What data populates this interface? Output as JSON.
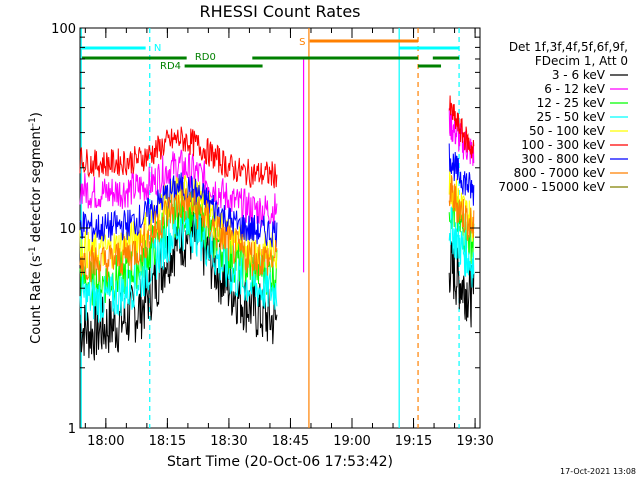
{
  "chart_data": {
    "type": "line",
    "title": "RHESSI Count Rates",
    "xlabel": "Start Time (20-Oct-06 17:53:42)",
    "ylabel_parts": [
      "Count Rate (s",
      "-1",
      " detector segment",
      "-1",
      ")"
    ],
    "yscale": "log",
    "ylim": [
      1,
      100
    ],
    "y_tick_labels": [
      "1",
      "10",
      "100"
    ],
    "xlim_minutes_after_17_53_42": [
      0,
      97.5
    ],
    "x_tick_labels": [
      "18:00",
      "18:15",
      "18:30",
      "18:45",
      "19:00",
      "19:15",
      "19:30"
    ],
    "legend_header": [
      "Det 1f,3f,4f,5f,6f,9f,",
      "FDecim 1, Att 0"
    ],
    "series": [
      {
        "name": "3 - 6 keV",
        "color": "#000000",
        "values": [
          3.2,
          3.0,
          3.2,
          3.3,
          3.6,
          4.0,
          5.2,
          7.2,
          8.8,
          9.2,
          8.0,
          6.4,
          5.2,
          4.5,
          4.0,
          3.6,
          3.4,
          null,
          null,
          null,
          null,
          null,
          null,
          null,
          null,
          null,
          null,
          null,
          null,
          null,
          6.5,
          5.6,
          5.0,
          4.4
        ]
      },
      {
        "name": "6 - 12 keV",
        "color": "#ff00ff",
        "values": [
          16.0,
          15.0,
          15.0,
          15.2,
          15.5,
          16.0,
          17.0,
          19.5,
          20.5,
          19.5,
          18.0,
          15.8,
          14.0,
          13.0,
          12.5,
          12.3,
          12.4,
          null,
          null,
          null,
          null,
          null,
          null,
          null,
          null,
          null,
          null,
          null,
          null,
          null,
          34.0,
          29.0,
          26.0,
          23.0
        ]
      },
      {
        "name": "12 - 25 keV",
        "color": "#00ff00",
        "values": [
          5.6,
          5.3,
          5.4,
          5.7,
          6.1,
          6.8,
          8.2,
          10.5,
          12.2,
          12.0,
          10.5,
          8.7,
          7.4,
          6.7,
          6.3,
          6.1,
          6.0,
          null,
          null,
          null,
          null,
          null,
          null,
          null,
          null,
          null,
          null,
          null,
          null,
          null,
          13.5,
          11.0,
          9.5,
          8.3
        ]
      },
      {
        "name": "25 - 50 keV",
        "color": "#00ffff",
        "values": [
          4.6,
          4.4,
          4.4,
          4.6,
          5.0,
          5.6,
          6.8,
          8.6,
          10.0,
          10.0,
          8.8,
          7.2,
          6.0,
          5.5,
          5.1,
          4.9,
          4.9,
          null,
          null,
          null,
          null,
          null,
          null,
          null,
          null,
          null,
          null,
          null,
          null,
          null,
          10.5,
          8.6,
          7.4,
          6.4
        ]
      },
      {
        "name": "50 - 100 keV",
        "color": "#ffff00",
        "values": [
          8.0,
          7.6,
          7.7,
          8.0,
          8.5,
          9.4,
          11.0,
          13.4,
          15.0,
          14.8,
          13.2,
          11.0,
          9.4,
          8.5,
          8.0,
          7.7,
          7.7,
          null,
          null,
          null,
          null,
          null,
          null,
          null,
          null,
          null,
          null,
          null,
          null,
          null,
          17.0,
          14.0,
          12.0,
          10.5
        ]
      },
      {
        "name": "100 - 300 keV",
        "color": "#ff0000",
        "values": [
          22.0,
          21.0,
          21.0,
          21.3,
          21.6,
          22.3,
          24.0,
          26.5,
          28.0,
          27.0,
          25.0,
          22.5,
          20.5,
          19.2,
          18.7,
          18.5,
          18.5,
          null,
          null,
          null,
          null,
          null,
          null,
          null,
          null,
          null,
          null,
          null,
          null,
          null,
          40.0,
          33.0,
          28.0,
          24.0
        ]
      },
      {
        "name": "300 - 800 keV",
        "color": "#0000ff",
        "values": [
          10.5,
          10.0,
          10.0,
          10.2,
          10.5,
          11.2,
          12.5,
          14.5,
          16.0,
          15.5,
          14.2,
          12.5,
          11.0,
          10.2,
          9.8,
          9.6,
          9.6,
          null,
          null,
          null,
          null,
          null,
          null,
          null,
          null,
          null,
          null,
          null,
          null,
          null,
          23.0,
          19.0,
          17.0,
          15.0
        ]
      },
      {
        "name": "800 - 7000 keV",
        "color": "#ff8000",
        "values": [
          7.0,
          6.7,
          6.7,
          7.0,
          7.4,
          8.2,
          9.6,
          11.8,
          13.2,
          13.0,
          11.6,
          9.8,
          8.4,
          7.6,
          7.2,
          7.0,
          7.0,
          null,
          null,
          null,
          null,
          null,
          null,
          null,
          null,
          null,
          null,
          null,
          null,
          null,
          15.5,
          13.0,
          11.2,
          9.8
        ]
      },
      {
        "name": "7000 - 15000 keV",
        "color": "#808000",
        "values": [
          null,
          null,
          null,
          null,
          null,
          null,
          null,
          null,
          null,
          null,
          null,
          null,
          null,
          null,
          null,
          null,
          null,
          null,
          null,
          null,
          null,
          null,
          null,
          null,
          null,
          null,
          null,
          null,
          null,
          null,
          null,
          null,
          null,
          null
        ]
      }
    ],
    "x_minutes": [
      0,
      3,
      6,
      9,
      12,
      15,
      18,
      21,
      24,
      27,
      30,
      33,
      36,
      39,
      42,
      45,
      48,
      51,
      54,
      57,
      60,
      63,
      66,
      69,
      72,
      75,
      78,
      81,
      84,
      87,
      90,
      92,
      94,
      96
    ],
    "flags": [
      {
        "label": "N",
        "color": "#00ffff"
      },
      {
        "label": "RD0",
        "color": "#008000"
      },
      {
        "label": "RD4",
        "color": "#008000"
      },
      {
        "label": "S",
        "color": "#ff8000"
      }
    ],
    "footer_timestamp": "17-Oct-2021 13:08"
  }
}
